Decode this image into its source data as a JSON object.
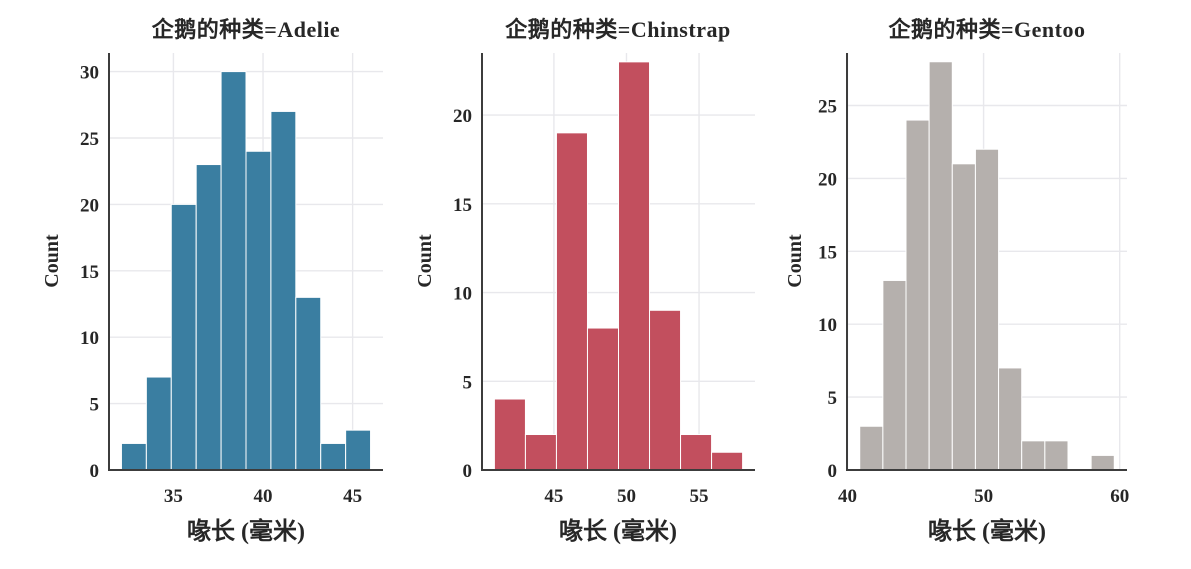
{
  "figure": {
    "background_color": "#ffffff",
    "text_color": "#272727",
    "grid_color": "#e8e8ec",
    "spine_color": "#3c3c3c",
    "bar_edge_color": "#ffffff"
  },
  "chart_data": [
    {
      "type": "bar",
      "subtype": "histogram",
      "title": "企鹅的种类=Adelie",
      "facet_value": "Adelie",
      "xlabel": "喙长 (毫米)",
      "ylabel": "Count",
      "bar_color": "#3a7ea1",
      "bin_start": 32.1,
      "bin_width": 1.39,
      "counts": [
        2,
        7,
        20,
        23,
        30,
        24,
        27,
        13,
        2,
        3
      ],
      "xlim": [
        31.405,
        46.695
      ],
      "ylim": [
        0,
        31.4
      ],
      "xticks": [
        35,
        40,
        45
      ],
      "yticks": [
        0,
        5,
        10,
        15,
        20,
        25,
        30
      ],
      "grid": true,
      "legend": false
    },
    {
      "type": "bar",
      "subtype": "histogram",
      "title": "企鹅的种类=Chinstrap",
      "facet_value": "Chinstrap",
      "xlabel": "喙长 (毫米)",
      "ylabel": "Count",
      "bar_color": "#c24f5e",
      "bin_start": 40.9,
      "bin_width": 2.1375,
      "counts": [
        4,
        2,
        19,
        8,
        23,
        9,
        2,
        1
      ],
      "xlim": [
        40.045,
        58.855
      ],
      "ylim": [
        0,
        23.5
      ],
      "xticks": [
        45,
        50,
        55
      ],
      "yticks": [
        0,
        5,
        10,
        15,
        20
      ],
      "grid": true,
      "legend": false
    },
    {
      "type": "bar",
      "subtype": "histogram",
      "title": "企鹅的种类=Gentoo",
      "facet_value": "Gentoo",
      "xlabel": "喙长 (毫米)",
      "ylabel": "Count",
      "bar_color": "#b5b0ad",
      "bin_start": 40.9,
      "bin_width": 1.7,
      "counts": [
        3,
        13,
        24,
        28,
        21,
        22,
        7,
        2,
        2,
        0,
        1
      ],
      "xlim": [
        39.965,
        60.535
      ],
      "ylim": [
        0,
        28.6
      ],
      "xticks": [
        40,
        50,
        60
      ],
      "yticks": [
        0,
        5,
        10,
        15,
        20,
        25
      ],
      "grid": true,
      "legend": false
    }
  ]
}
